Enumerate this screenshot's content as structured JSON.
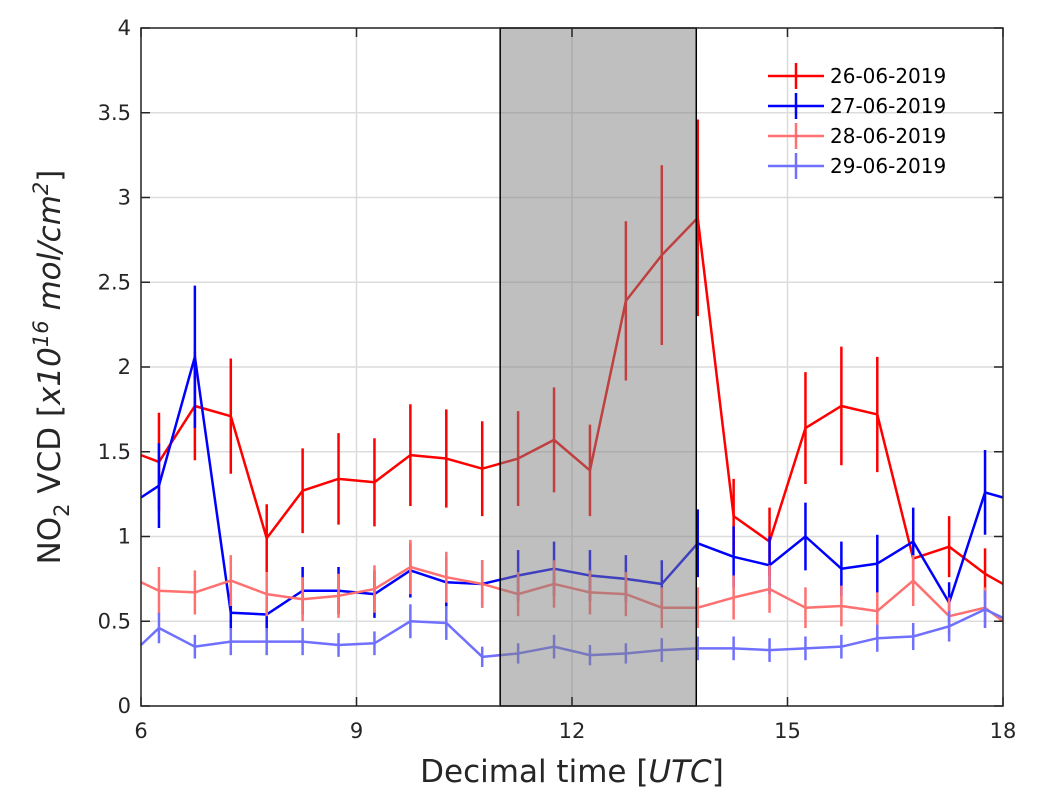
{
  "chart_data": {
    "type": "line",
    "xlabel": "Decimal time [UTC]",
    "xlabel_parts": {
      "main": "Decimal time [",
      "italic": "UTC",
      "end": "]"
    },
    "ylabel": "NO2 VCD [x10^16 mol/cm^2]",
    "ylabel_parts": {
      "a": "NO",
      "sub": "2",
      "b": " VCD [",
      "c": "x10",
      "sup1": "16",
      "d": " mol/cm",
      "sup2": "2",
      "e": "]"
    },
    "xlim": [
      6,
      18
    ],
    "ylim": [
      0,
      4
    ],
    "xticks": [
      "6",
      "9",
      "12",
      "15",
      "18"
    ],
    "yticks": [
      "0",
      "0.5",
      "1",
      "1.5",
      "2",
      "2.5",
      "3",
      "3.5",
      "4"
    ],
    "grid": true,
    "legend_position": "top-right",
    "shaded_region": {
      "x": [
        11.0,
        13.73
      ],
      "color": "#808080"
    },
    "x": [
      6,
      6.25,
      6.75,
      7.25,
      7.75,
      8.25,
      8.75,
      9.25,
      9.75,
      10.25,
      10.75,
      11.25,
      11.75,
      12.25,
      12.75,
      13.25,
      13.75,
      14.25,
      14.75,
      15.25,
      15.75,
      16.25,
      16.75,
      17.25,
      17.75,
      18
    ],
    "series": [
      {
        "name": "26-06-2019",
        "color": "#ff0000",
        "values": [
          1.48,
          1.44,
          1.77,
          1.71,
          0.99,
          1.27,
          1.34,
          1.32,
          1.48,
          1.46,
          1.4,
          1.46,
          1.57,
          1.39,
          2.39,
          2.66,
          2.88,
          1.12,
          0.97,
          1.64,
          1.77,
          1.72,
          0.87,
          0.94,
          0.78,
          0.72
        ],
        "errors": [
          0,
          0.29,
          0.32,
          0.34,
          0.2,
          0.25,
          0.27,
          0.26,
          0.3,
          0.29,
          0.28,
          0.28,
          0.31,
          0.27,
          0.47,
          0.53,
          0.58,
          0.22,
          0.2,
          0.33,
          0.35,
          0.34,
          0.15,
          0.18,
          0.15,
          0
        ]
      },
      {
        "name": "27-06-2019",
        "color": "#0000ff",
        "values": [
          1.23,
          1.3,
          2.06,
          0.55,
          0.54,
          0.68,
          0.68,
          0.66,
          0.8,
          0.73,
          0.72,
          0.77,
          0.81,
          0.77,
          0.75,
          0.72,
          0.96,
          0.88,
          0.83,
          1.0,
          0.81,
          0.84,
          0.97,
          0.61,
          1.26,
          1.23
        ],
        "errors": [
          0,
          0.25,
          0.42,
          0.1,
          0.1,
          0.14,
          0.14,
          0.14,
          0.16,
          0.15,
          0.14,
          0.15,
          0.16,
          0.15,
          0.14,
          0.14,
          0.2,
          0.18,
          0.17,
          0.2,
          0.16,
          0.17,
          0.2,
          0.12,
          0.25,
          0
        ]
      },
      {
        "name": "28-06-2019",
        "color": "#ff7070",
        "values": [
          0.73,
          0.68,
          0.67,
          0.74,
          0.66,
          0.63,
          0.65,
          0.69,
          0.82,
          0.76,
          0.72,
          0.66,
          0.72,
          0.67,
          0.66,
          0.58,
          0.58,
          0.64,
          0.69,
          0.58,
          0.59,
          0.56,
          0.74,
          0.53,
          0.58,
          0.5
        ],
        "errors": [
          0,
          0.14,
          0.13,
          0.15,
          0.13,
          0.13,
          0.13,
          0.14,
          0.16,
          0.15,
          0.14,
          0.13,
          0.14,
          0.13,
          0.13,
          0.12,
          0.12,
          0.13,
          0.14,
          0.12,
          0.12,
          0.11,
          0.15,
          0.11,
          0.12,
          0
        ]
      },
      {
        "name": "29-06-2019",
        "color": "#7070ff",
        "values": [
          0.36,
          0.46,
          0.35,
          0.38,
          0.38,
          0.38,
          0.36,
          0.37,
          0.5,
          0.49,
          0.29,
          0.31,
          0.35,
          0.3,
          0.31,
          0.33,
          0.34,
          0.34,
          0.33,
          0.34,
          0.35,
          0.4,
          0.41,
          0.47,
          0.57,
          0.52
        ],
        "errors": [
          0,
          0.09,
          0.07,
          0.08,
          0.08,
          0.08,
          0.07,
          0.07,
          0.1,
          0.1,
          0.06,
          0.06,
          0.07,
          0.06,
          0.06,
          0.07,
          0.07,
          0.07,
          0.07,
          0.07,
          0.07,
          0.08,
          0.08,
          0.09,
          0.11,
          0
        ]
      }
    ]
  }
}
